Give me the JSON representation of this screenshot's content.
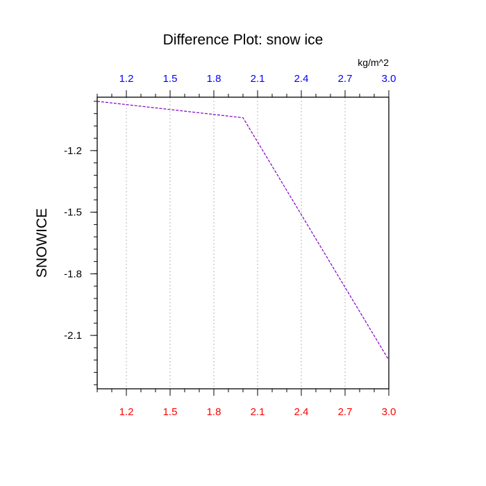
{
  "chart_data": {
    "type": "line",
    "title": "Difference Plot: snow ice",
    "ylabel": "SNOWICE",
    "top_axis_unit": "kg/m^2",
    "x": [
      1.0,
      2.0,
      3.0
    ],
    "series": [
      {
        "values": [
          -0.96,
          -1.04,
          -2.22
        ],
        "color": "#8000c0"
      }
    ],
    "xlim": [
      1.0,
      3.0
    ],
    "ylim": [
      -2.36,
      -0.94
    ],
    "x_ticks": [
      1.2,
      1.5,
      1.8,
      2.1,
      2.4,
      2.7,
      3.0
    ],
    "x_tick_labels": [
      "1.2",
      "1.5",
      "1.8",
      "2.1",
      "2.4",
      "2.7",
      "3.0"
    ],
    "y_ticks": [
      -1.2,
      -1.5,
      -1.8,
      -2.1
    ],
    "y_tick_labels": [
      "-1.2",
      "-1.5",
      "-1.8",
      "-2.1"
    ],
    "grid": "vertical-dotted",
    "bottom_tick_color": "#ff0000",
    "top_tick_color": "#0000ff",
    "grid_color": "#b4b4b4"
  }
}
